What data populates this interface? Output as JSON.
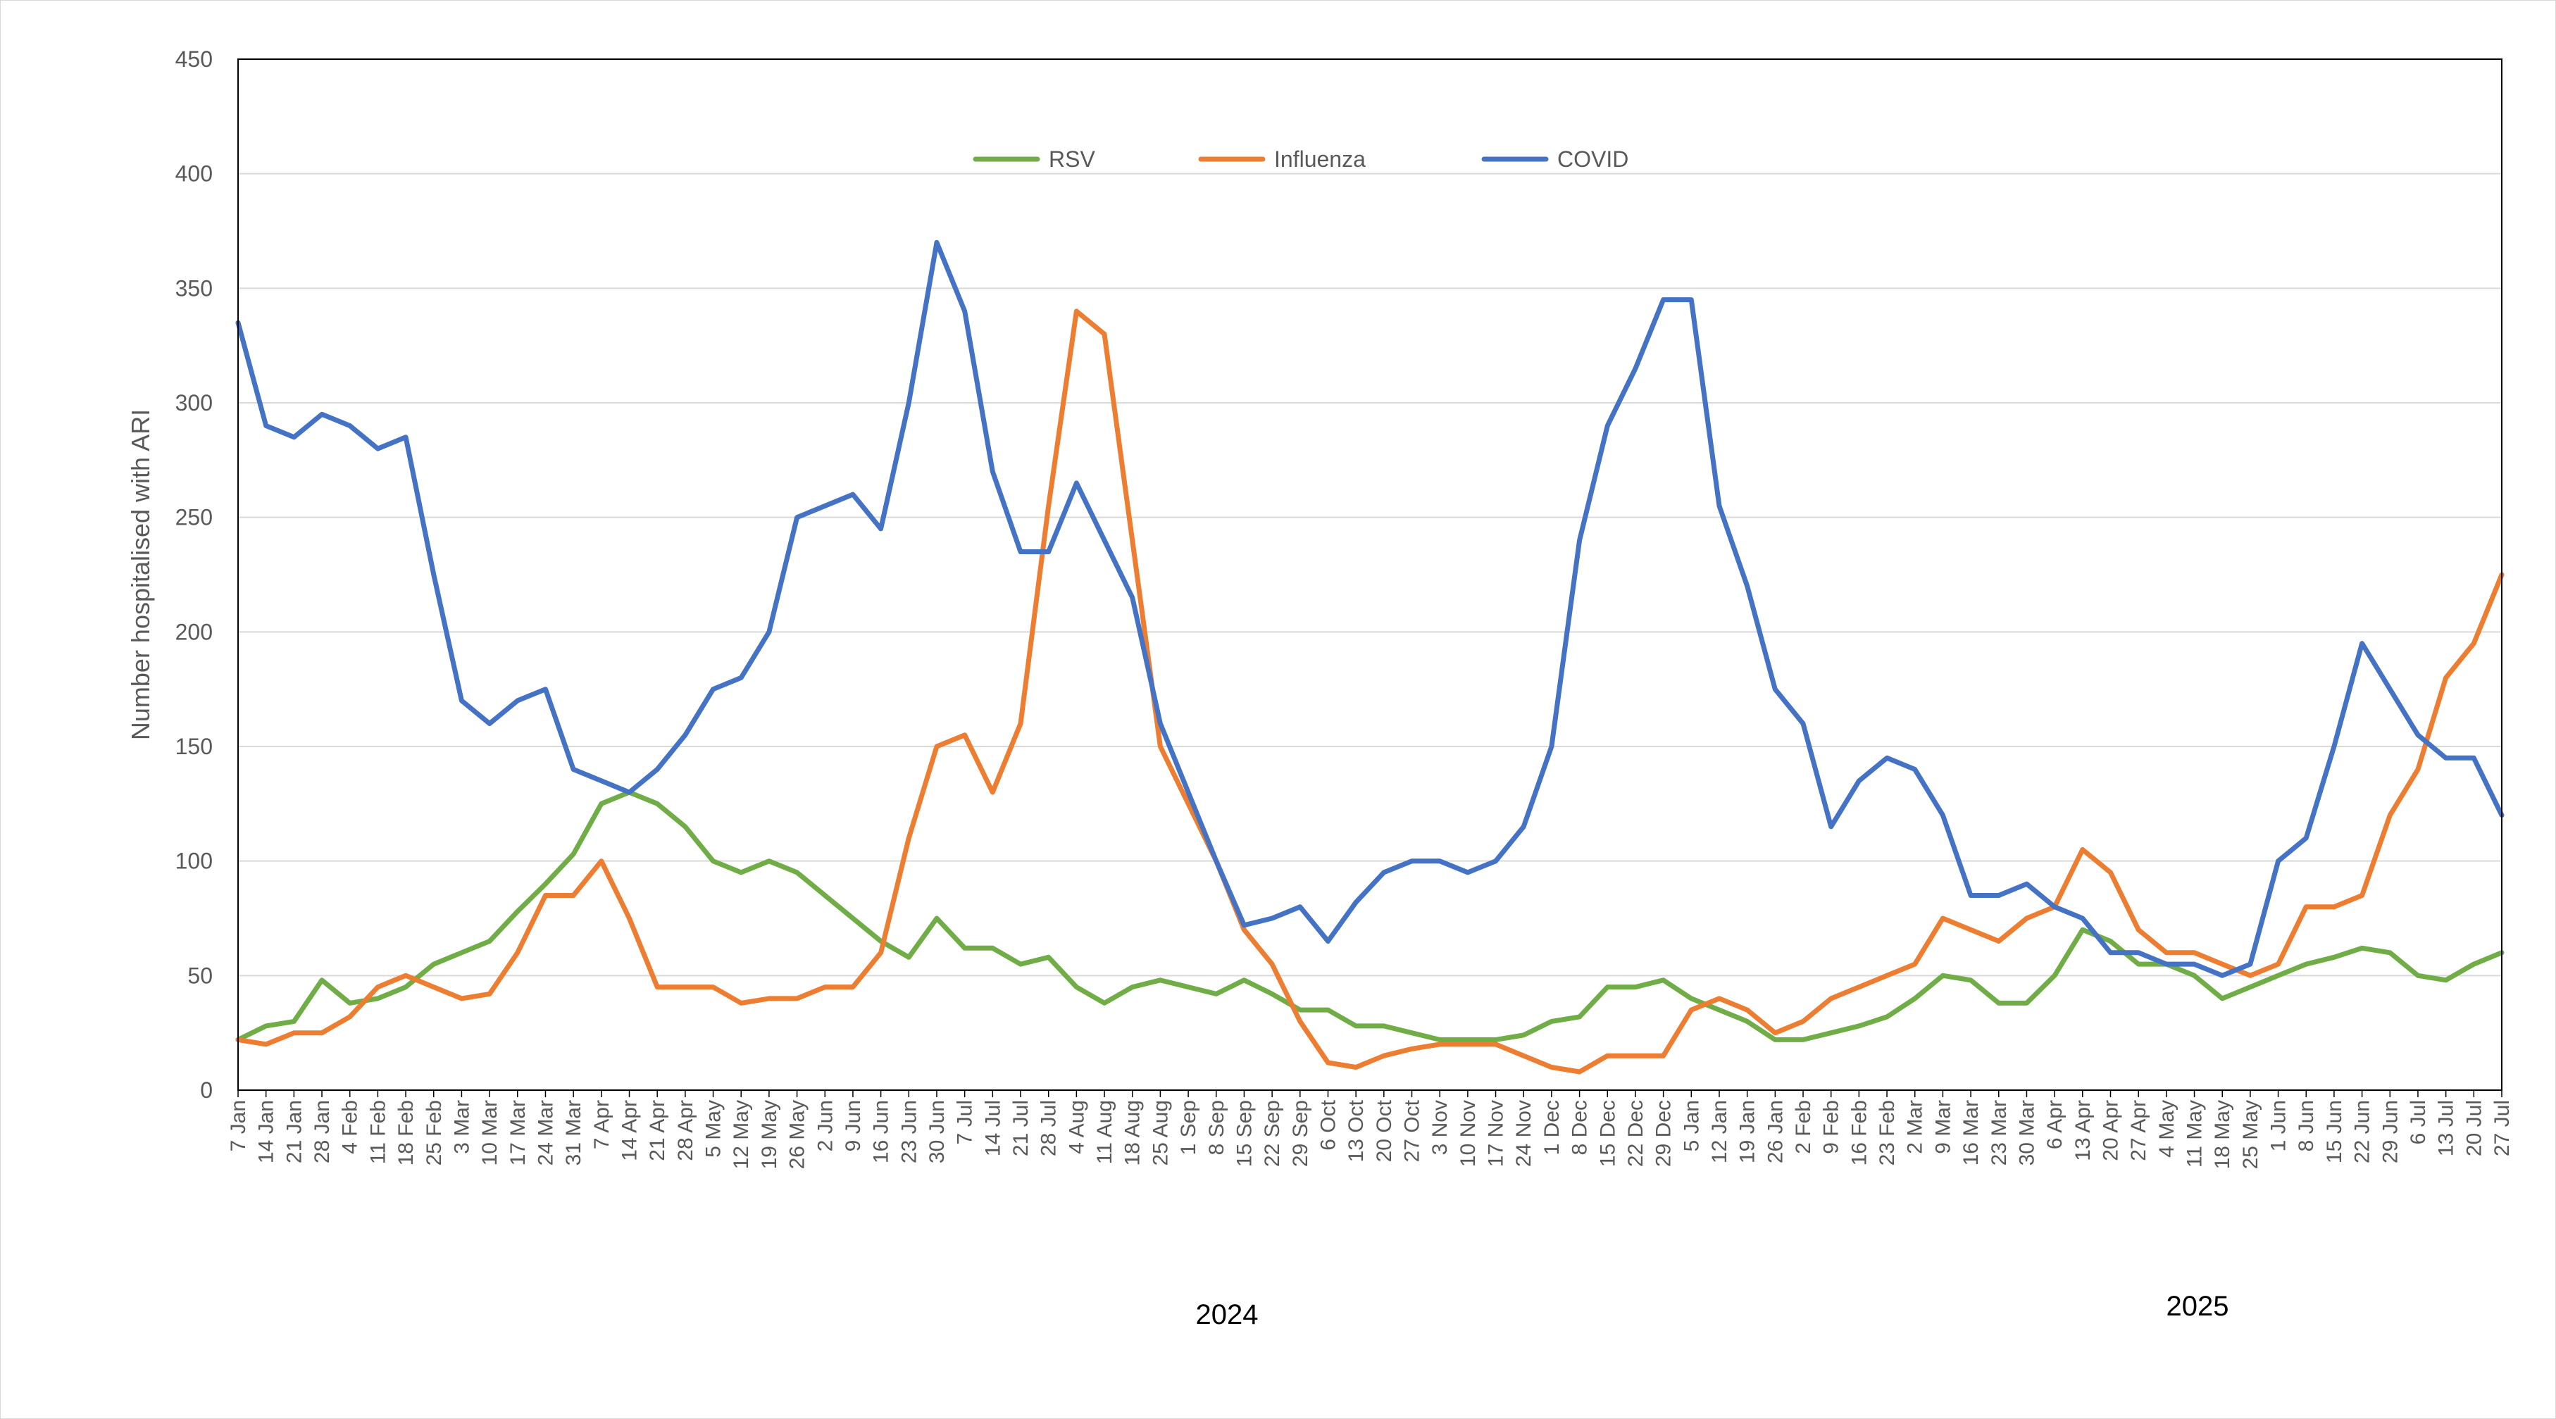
{
  "chart_data": {
    "type": "line",
    "title": "",
    "xlabel": "",
    "ylabel": "Number hospitalised with ARI",
    "ylim": [
      0,
      450
    ],
    "yticks": [
      0,
      50,
      100,
      150,
      200,
      250,
      300,
      350,
      400,
      450
    ],
    "grid": true,
    "legend_position": "top-center",
    "x_year_labels": [
      "2024",
      "2025"
    ],
    "categories": [
      "7 Jan",
      "14 Jan",
      "21 Jan",
      "28 Jan",
      "4 Feb",
      "11 Feb",
      "18 Feb",
      "25 Feb",
      "3 Mar",
      "10 Mar",
      "17 Mar",
      "24 Mar",
      "31 Mar",
      "7 Apr",
      "14 Apr",
      "21 Apr",
      "28 Apr",
      "5 May",
      "12 May",
      "19 May",
      "26 May",
      "2 Jun",
      "9 Jun",
      "16 Jun",
      "23 Jun",
      "30 Jun",
      "7 Jul",
      "14 Jul",
      "21 Jul",
      "28 Jul",
      "4 Aug",
      "11 Aug",
      "18 Aug",
      "25 Aug",
      "1 Sep",
      "8 Sep",
      "15 Sep",
      "22 Sep",
      "29 Sep",
      "6 Oct",
      "13 Oct",
      "20 Oct",
      "27 Oct",
      "3 Nov",
      "10 Nov",
      "17 Nov",
      "24 Nov",
      "1 Dec",
      "8 Dec",
      "15 Dec",
      "22 Dec",
      "29 Dec",
      "5 Jan",
      "12 Jan",
      "19 Jan",
      "26 Jan",
      "2 Feb",
      "9 Feb",
      "16 Feb",
      "23 Feb",
      "2 Mar",
      "9 Mar",
      "16 Mar",
      "23 Mar",
      "30 Mar",
      "6 Apr",
      "13 Apr",
      "20 Apr",
      "27 Apr",
      "4 May",
      "11 May",
      "18 May",
      "25 May",
      "1 Jun",
      "8 Jun",
      "15 Jun",
      "22 Jun",
      "29 Jun",
      "6 Jul",
      "13 Jul",
      "20 Jul",
      "27 Jul"
    ],
    "series": [
      {
        "name": "RSV",
        "color": "#70AD47",
        "values": [
          22,
          28,
          30,
          48,
          38,
          40,
          45,
          55,
          60,
          65,
          78,
          90,
          103,
          125,
          130,
          125,
          115,
          100,
          95,
          100,
          95,
          85,
          75,
          65,
          58,
          75,
          62,
          62,
          55,
          58,
          45,
          38,
          45,
          48,
          45,
          42,
          48,
          42,
          35,
          35,
          28,
          28,
          25,
          22,
          22,
          22,
          24,
          30,
          32,
          45,
          45,
          48,
          40,
          35,
          30,
          22,
          22,
          25,
          28,
          32,
          40,
          50,
          48,
          38,
          38,
          50,
          70,
          65,
          55,
          55,
          50,
          40,
          45,
          50,
          55,
          58,
          62,
          60,
          50,
          48,
          55,
          60
        ]
      },
      {
        "name": "Influenza",
        "color": "#ED7D31",
        "values": [
          22,
          20,
          25,
          25,
          32,
          45,
          50,
          45,
          40,
          42,
          60,
          85,
          85,
          100,
          75,
          45,
          45,
          45,
          38,
          40,
          40,
          45,
          45,
          60,
          110,
          150,
          155,
          130,
          160,
          255,
          340,
          330,
          240,
          150,
          125,
          100,
          70,
          55,
          30,
          12,
          10,
          15,
          18,
          20,
          20,
          20,
          15,
          10,
          8,
          15,
          15,
          15,
          35,
          40,
          35,
          25,
          30,
          40,
          45,
          50,
          55,
          75,
          70,
          65,
          75,
          80,
          105,
          95,
          70,
          60,
          60,
          55,
          50,
          55,
          80,
          80,
          85,
          120,
          140,
          180,
          195,
          225
        ]
      },
      {
        "name": "COVID",
        "color": "#4472C4",
        "values": [
          335,
          290,
          285,
          295,
          290,
          280,
          285,
          225,
          170,
          160,
          170,
          175,
          140,
          135,
          130,
          140,
          155,
          175,
          180,
          200,
          250,
          255,
          260,
          245,
          300,
          370,
          340,
          270,
          235,
          235,
          265,
          240,
          215,
          160,
          130,
          100,
          72,
          75,
          80,
          65,
          82,
          95,
          100,
          100,
          95,
          100,
          115,
          150,
          240,
          290,
          315,
          345,
          345,
          255,
          220,
          175,
          160,
          115,
          135,
          145,
          140,
          120,
          85,
          85,
          90,
          80,
          75,
          60,
          60,
          55,
          55,
          50,
          55,
          100,
          110,
          150,
          195,
          175,
          155,
          145,
          145,
          120
        ]
      }
    ]
  }
}
